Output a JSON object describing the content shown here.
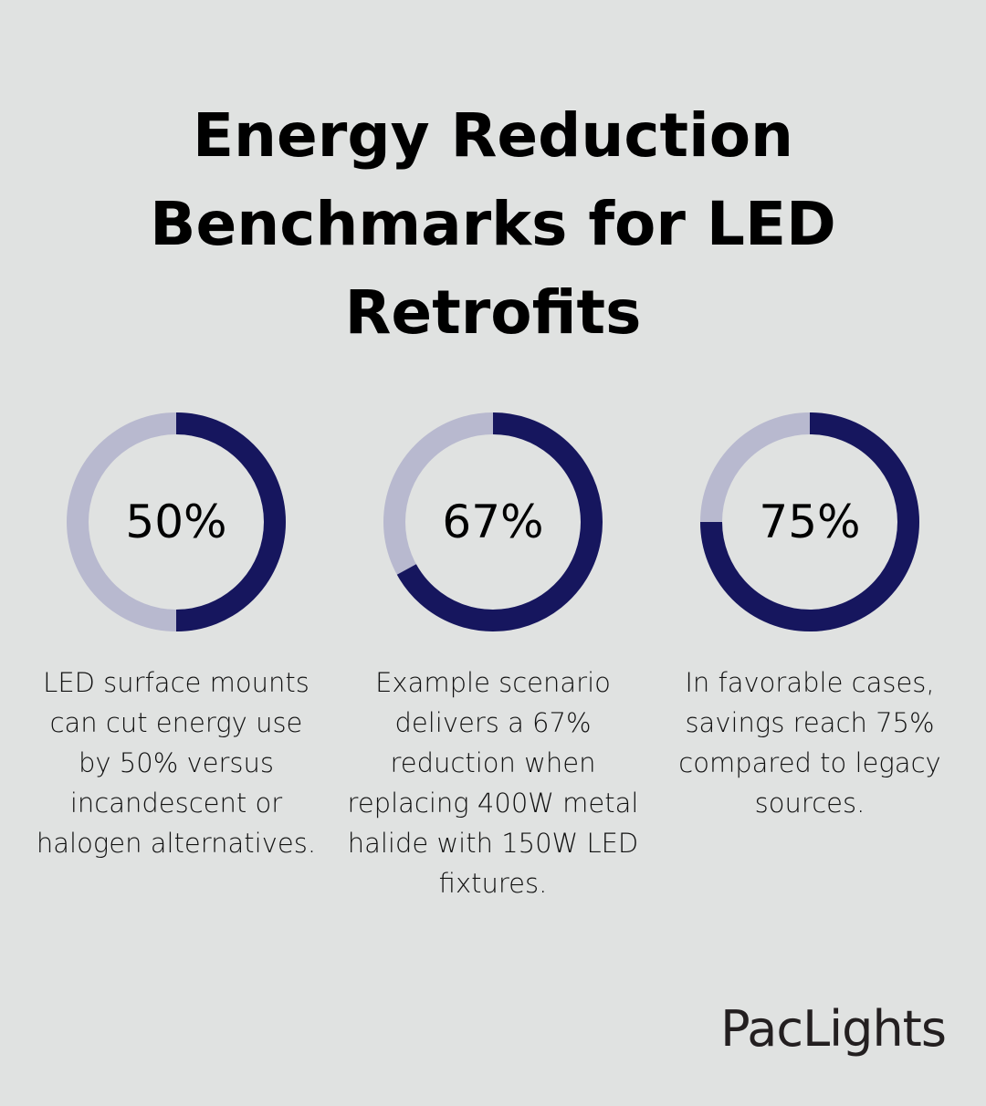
{
  "title": "Energy Reduction Benchmarks for LED Retrofits",
  "colors": {
    "background": "#e0e2e1",
    "filled": "#16165e",
    "remaining": "#b8b9cf"
  },
  "chart_data": [
    {
      "type": "pie",
      "variant": "donut",
      "values": [
        50,
        50
      ],
      "label": "50%",
      "description": "LED surface mounts can cut energy use by 50% versus incandescent or halogen alternatives."
    },
    {
      "type": "pie",
      "variant": "donut",
      "values": [
        67,
        33
      ],
      "label": "67%",
      "description": "Example scenario delivers a 67% reduction when replacing 400W metal halide with 150W LED fixtures."
    },
    {
      "type": "pie",
      "variant": "donut",
      "values": [
        75,
        25
      ],
      "label": "75%",
      "description": "In favorable cases, savings reach 75% compared to legacy sources."
    }
  ],
  "logo": "PacLights"
}
